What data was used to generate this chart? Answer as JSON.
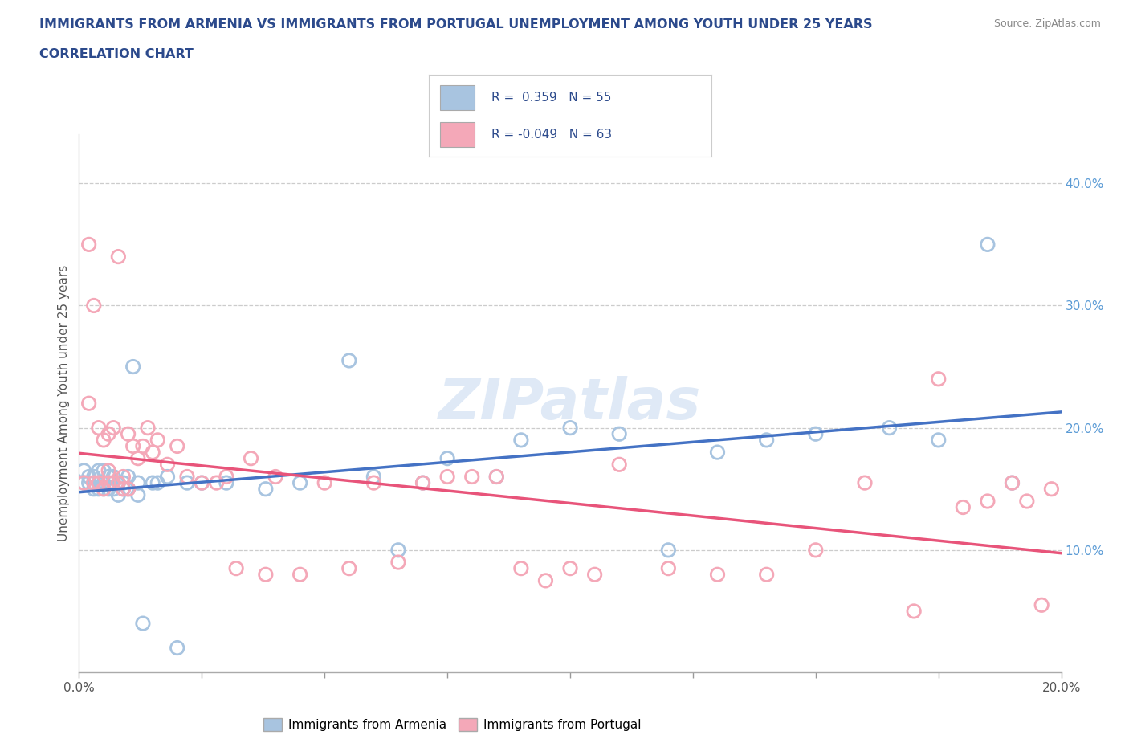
{
  "title_line1": "IMMIGRANTS FROM ARMENIA VS IMMIGRANTS FROM PORTUGAL UNEMPLOYMENT AMONG YOUTH UNDER 25 YEARS",
  "title_line2": "CORRELATION CHART",
  "source": "Source: ZipAtlas.com",
  "ylabel": "Unemployment Among Youth under 25 years",
  "xlim": [
    0.0,
    0.2
  ],
  "ylim": [
    0.0,
    0.44
  ],
  "yticks": [
    0.1,
    0.2,
    0.3,
    0.4
  ],
  "ytick_labels": [
    "10.0%",
    "20.0%",
    "30.0%",
    "40.0%"
  ],
  "xtick_labels_ends": [
    "0.0%",
    "20.0%"
  ],
  "xtick_positions_ends": [
    0.0,
    0.2
  ],
  "xtick_minor": [
    0.025,
    0.05,
    0.075,
    0.1,
    0.125,
    0.15,
    0.175
  ],
  "r_armenia": 0.359,
  "n_armenia": 55,
  "r_portugal": -0.049,
  "n_portugal": 63,
  "color_armenia": "#a8c4e0",
  "color_portugal": "#f4a8b8",
  "color_line_armenia": "#4472c4",
  "color_line_portugal": "#e8547a",
  "watermark": "ZIPatlas",
  "legend_label_armenia": "Immigrants from Armenia",
  "legend_label_portugal": "Immigrants from Portugal",
  "armenia_x": [
    0.001,
    0.001,
    0.002,
    0.002,
    0.003,
    0.003,
    0.003,
    0.004,
    0.004,
    0.004,
    0.005,
    0.005,
    0.005,
    0.006,
    0.006,
    0.006,
    0.007,
    0.007,
    0.007,
    0.008,
    0.008,
    0.009,
    0.009,
    0.01,
    0.01,
    0.011,
    0.012,
    0.012,
    0.013,
    0.015,
    0.016,
    0.018,
    0.02,
    0.022,
    0.025,
    0.03,
    0.038,
    0.045,
    0.055,
    0.06,
    0.065,
    0.07,
    0.075,
    0.085,
    0.09,
    0.1,
    0.11,
    0.12,
    0.13,
    0.14,
    0.15,
    0.165,
    0.175,
    0.185,
    0.19
  ],
  "armenia_y": [
    0.155,
    0.165,
    0.155,
    0.16,
    0.155,
    0.15,
    0.16,
    0.155,
    0.165,
    0.15,
    0.155,
    0.15,
    0.165,
    0.155,
    0.15,
    0.16,
    0.15,
    0.155,
    0.16,
    0.155,
    0.145,
    0.15,
    0.155,
    0.16,
    0.15,
    0.25,
    0.155,
    0.145,
    0.04,
    0.155,
    0.155,
    0.16,
    0.02,
    0.155,
    0.155,
    0.155,
    0.15,
    0.155,
    0.255,
    0.16,
    0.1,
    0.155,
    0.175,
    0.16,
    0.19,
    0.2,
    0.195,
    0.1,
    0.18,
    0.19,
    0.195,
    0.2,
    0.19,
    0.35,
    0.155
  ],
  "portugal_x": [
    0.001,
    0.002,
    0.002,
    0.003,
    0.003,
    0.004,
    0.004,
    0.005,
    0.005,
    0.006,
    0.006,
    0.006,
    0.007,
    0.007,
    0.008,
    0.008,
    0.009,
    0.009,
    0.01,
    0.01,
    0.011,
    0.012,
    0.013,
    0.014,
    0.015,
    0.016,
    0.018,
    0.02,
    0.022,
    0.025,
    0.028,
    0.03,
    0.032,
    0.035,
    0.038,
    0.04,
    0.045,
    0.05,
    0.055,
    0.06,
    0.065,
    0.07,
    0.075,
    0.08,
    0.085,
    0.09,
    0.095,
    0.1,
    0.105,
    0.11,
    0.12,
    0.13,
    0.14,
    0.15,
    0.16,
    0.17,
    0.175,
    0.18,
    0.185,
    0.19,
    0.193,
    0.196,
    0.198
  ],
  "portugal_y": [
    0.155,
    0.35,
    0.22,
    0.3,
    0.155,
    0.2,
    0.155,
    0.19,
    0.15,
    0.195,
    0.155,
    0.165,
    0.2,
    0.155,
    0.34,
    0.155,
    0.16,
    0.15,
    0.195,
    0.15,
    0.185,
    0.175,
    0.185,
    0.2,
    0.18,
    0.19,
    0.17,
    0.185,
    0.16,
    0.155,
    0.155,
    0.16,
    0.085,
    0.175,
    0.08,
    0.16,
    0.08,
    0.155,
    0.085,
    0.155,
    0.09,
    0.155,
    0.16,
    0.16,
    0.16,
    0.085,
    0.075,
    0.085,
    0.08,
    0.17,
    0.085,
    0.08,
    0.08,
    0.1,
    0.155,
    0.05,
    0.24,
    0.135,
    0.14,
    0.155,
    0.14,
    0.055,
    0.15
  ]
}
